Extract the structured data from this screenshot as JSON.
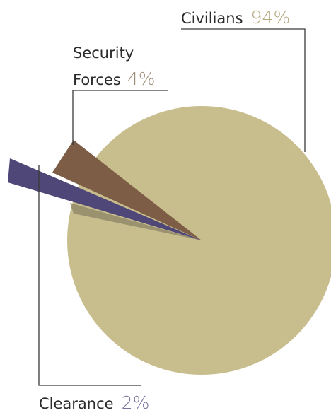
{
  "chart_data": {
    "type": "pie",
    "slices": [
      {
        "label": "Civilians",
        "value": 94,
        "value_label": "94%",
        "color": "#c8bd8d"
      },
      {
        "label_lines": [
          "Security",
          "Forces"
        ],
        "value": 4,
        "value_label": "4%",
        "color": "#7d5d45"
      },
      {
        "label": "Clearance",
        "value": 2,
        "value_label": "2%",
        "color": "#4e4777"
      }
    ],
    "legend": "none",
    "colors": {
      "leader_line": "#3a3a3a",
      "civilians_pct_text": "#b5a982",
      "security_pct_text": "#a08f78",
      "clearance_pct_text": "#77739b"
    }
  }
}
